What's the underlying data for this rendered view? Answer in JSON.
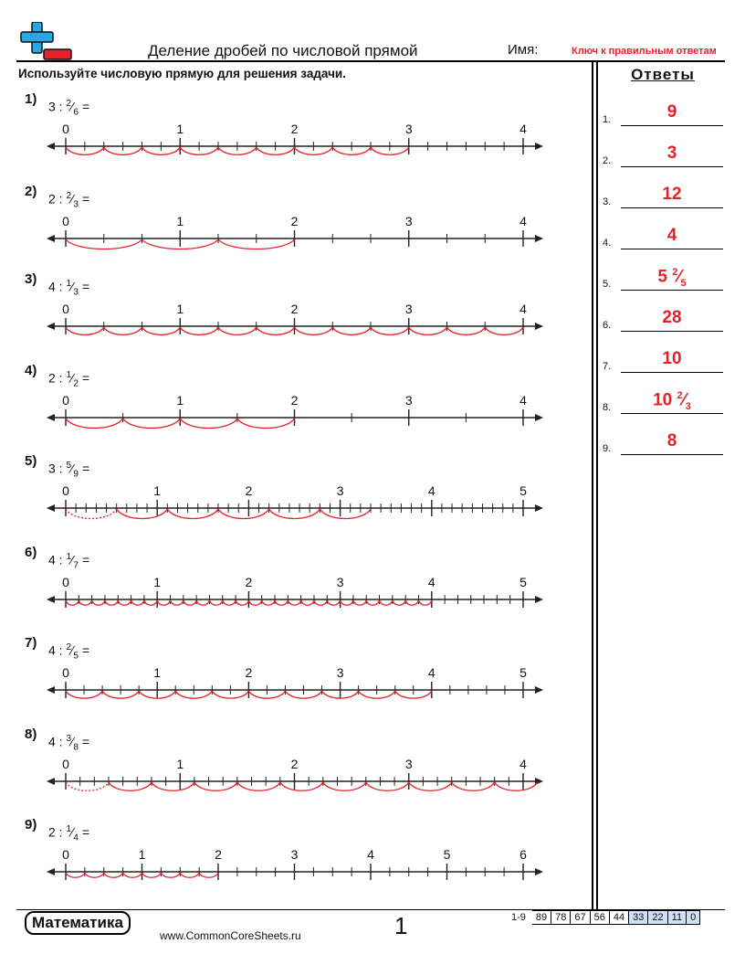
{
  "header": {
    "title": "Деление дробей по числовой прямой",
    "name_label": "Имя:",
    "key_label": "Ключ к правильным ответам",
    "instructions": "Используйте числовую прямую для решения задачи."
  },
  "answers_header": "Ответы",
  "problems": [
    {
      "num": "1)",
      "whole": "3 :",
      "frac_num": "2",
      "frac_den": "6",
      "eq": "=",
      "max": 4,
      "ticks_per_unit": 6,
      "arc_ticks": 2,
      "arcs": 9,
      "first_dashed": false
    },
    {
      "num": "2)",
      "whole": "2 :",
      "frac_num": "2",
      "frac_den": "3",
      "eq": "=",
      "max": 4,
      "ticks_per_unit": 3,
      "arc_ticks": 2,
      "arcs": 3,
      "first_dashed": false
    },
    {
      "num": "3)",
      "whole": "4 :",
      "frac_num": "1",
      "frac_den": "3",
      "eq": "=",
      "max": 4,
      "ticks_per_unit": 3,
      "arc_ticks": 1,
      "arcs": 12,
      "first_dashed": false
    },
    {
      "num": "4)",
      "whole": "2 :",
      "frac_num": "1",
      "frac_den": "2",
      "eq": "=",
      "max": 4,
      "ticks_per_unit": 2,
      "arc_ticks": 1,
      "arcs": 4,
      "first_dashed": false
    },
    {
      "num": "5)",
      "whole": "3 :",
      "frac_num": "5",
      "frac_den": "9",
      "eq": "=",
      "max": 5,
      "ticks_per_unit": 9,
      "arc_ticks": 5,
      "arcs": 6,
      "first_dashed": true
    },
    {
      "num": "6)",
      "whole": "4 :",
      "frac_num": "1",
      "frac_den": "7",
      "eq": "=",
      "max": 5,
      "ticks_per_unit": 7,
      "arc_ticks": 1,
      "arcs": 28,
      "first_dashed": false
    },
    {
      "num": "7)",
      "whole": "4 :",
      "frac_num": "2",
      "frac_den": "5",
      "eq": "=",
      "max": 5,
      "ticks_per_unit": 5,
      "arc_ticks": 2,
      "arcs": 10,
      "first_dashed": false
    },
    {
      "num": "8)",
      "whole": "4 :",
      "frac_num": "3",
      "frac_den": "8",
      "eq": "=",
      "max": 4,
      "ticks_per_unit": 8,
      "arc_ticks": 3,
      "arcs": 11,
      "first_dashed": true
    },
    {
      "num": "9)",
      "whole": "2 :",
      "frac_num": "1",
      "frac_den": "4",
      "eq": "=",
      "max": 6,
      "ticks_per_unit": 4,
      "arc_ticks": 1,
      "arcs": 8,
      "first_dashed": false
    }
  ],
  "answers": [
    {
      "num": "1.",
      "whole": "9",
      "frac_num": "",
      "frac_den": ""
    },
    {
      "num": "2.",
      "whole": "3",
      "frac_num": "",
      "frac_den": ""
    },
    {
      "num": "3.",
      "whole": "12",
      "frac_num": "",
      "frac_den": ""
    },
    {
      "num": "4.",
      "whole": "4",
      "frac_num": "",
      "frac_den": ""
    },
    {
      "num": "5.",
      "whole": "5",
      "frac_num": "2",
      "frac_den": "5"
    },
    {
      "num": "6.",
      "whole": "28",
      "frac_num": "",
      "frac_den": ""
    },
    {
      "num": "7.",
      "whole": "10",
      "frac_num": "",
      "frac_den": ""
    },
    {
      "num": "8.",
      "whole": "10",
      "frac_num": "2",
      "frac_den": "3"
    },
    {
      "num": "9.",
      "whole": "8",
      "frac_num": "",
      "frac_den": ""
    }
  ],
  "footer": {
    "brand": "Математика",
    "url": "www.CommonCoreSheets.ru",
    "page": "1",
    "score_range": "1-9",
    "scores": [
      "89",
      "78",
      "67",
      "56",
      "44",
      "33",
      "22",
      "11",
      "0"
    ]
  },
  "colors": {
    "accent": "#e8202a",
    "logo_blue": "#2aa6e0",
    "score_blue": "#cfe0f5"
  }
}
